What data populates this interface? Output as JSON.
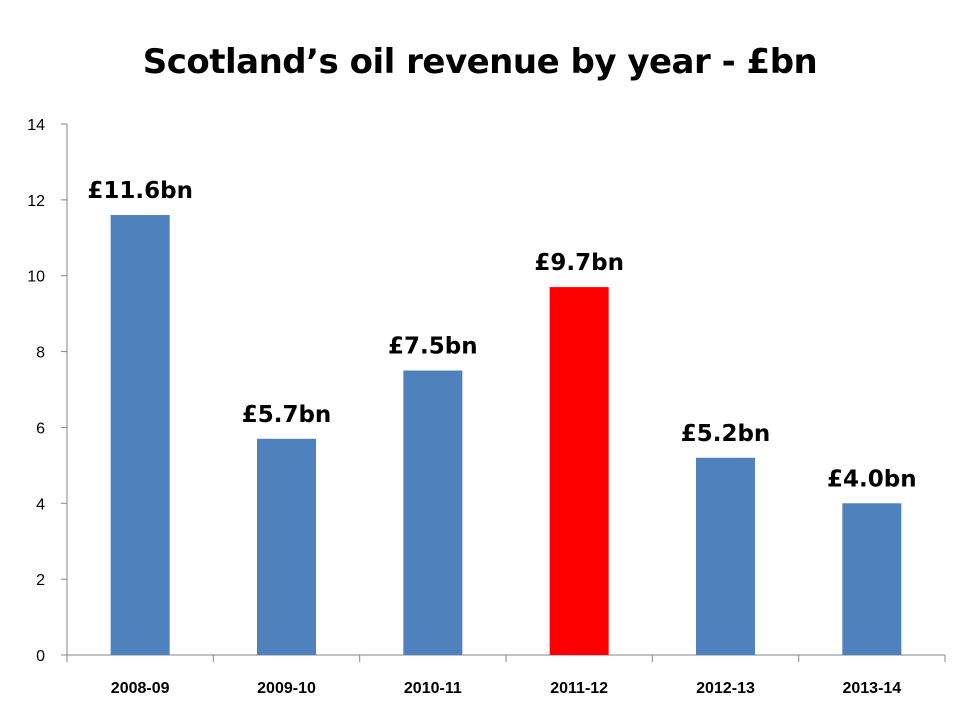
{
  "chart_data": {
    "type": "bar",
    "title": "Scotland’s oil revenue by year - £bn",
    "xlabel": "",
    "ylabel": "",
    "categories": [
      "2008-09",
      "2009-10",
      "2010-11",
      "2011-12",
      "2012-13",
      "2013-14"
    ],
    "values": [
      11.6,
      5.7,
      7.5,
      9.7,
      5.2,
      4.0
    ],
    "data_labels": [
      "£11.6bn",
      "£5.7bn",
      "£7.5bn",
      "£9.7bn",
      "£5.2bn",
      "£4.0bn"
    ],
    "colors": [
      "#4F81BD",
      "#4F81BD",
      "#4F81BD",
      "#FF0000",
      "#4F81BD",
      "#4F81BD"
    ],
    "ylim": [
      0,
      14
    ],
    "yticks": [
      0,
      2,
      4,
      6,
      8,
      10,
      12,
      14
    ],
    "grid": false,
    "legend": "none"
  }
}
